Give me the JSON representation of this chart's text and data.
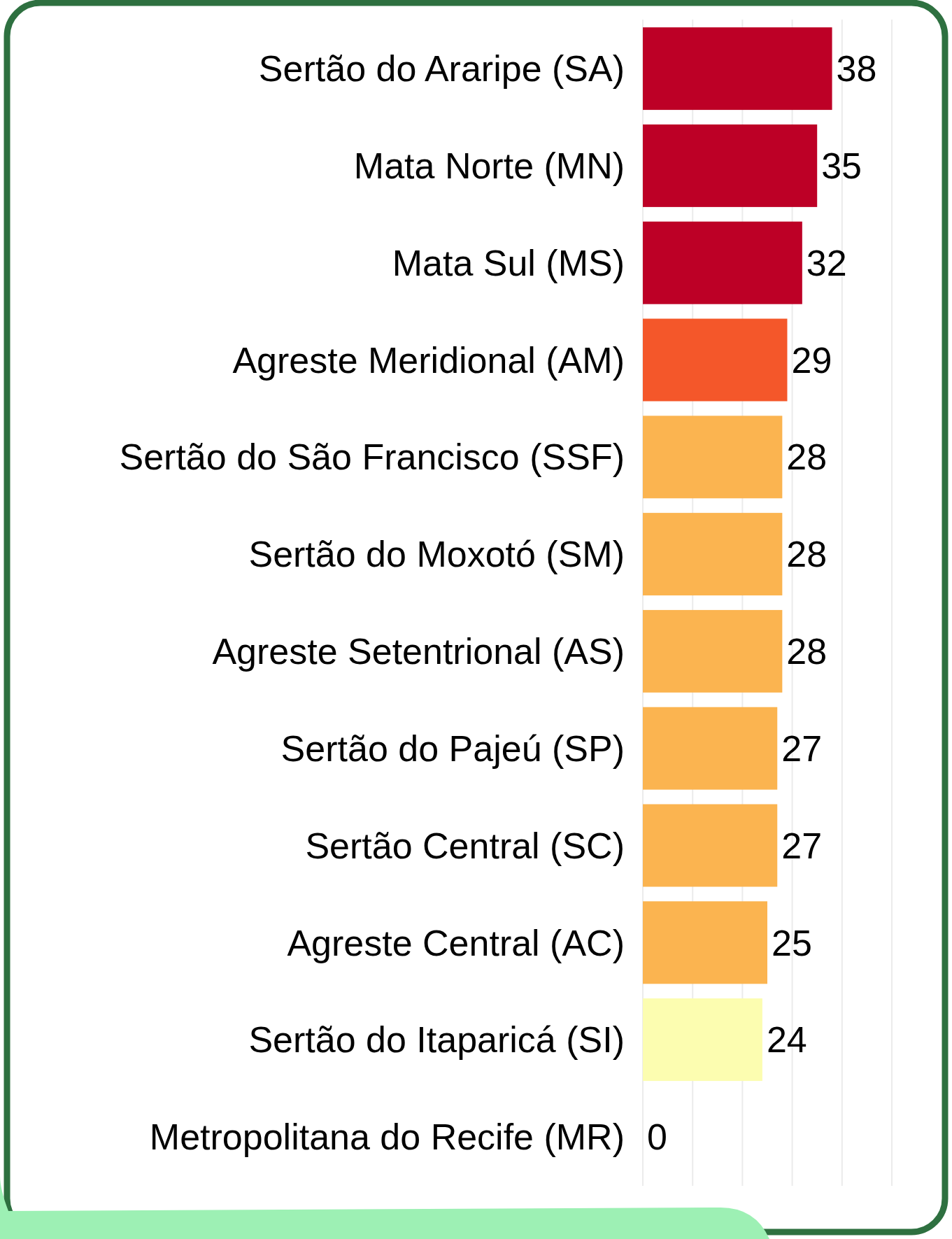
{
  "chart_data": {
    "type": "bar",
    "orientation": "horizontal",
    "categories": [
      "Sertão do Araripe (SA)",
      "Mata Norte (MN)",
      "Mata Sul (MS)",
      "Agreste Meridional (AM)",
      "Sertão do São Francisco (SSF)",
      "Sertão do Moxotó (SM)",
      "Agreste Setentrional (AS)",
      "Sertão do Pajeú (SP)",
      "Sertão Central (SC)",
      "Agreste Central (AC)",
      "Sertão do Itaparicá (SI)",
      "Metropolitana do Recife (MR)"
    ],
    "values": [
      38,
      35,
      32,
      29,
      28,
      28,
      28,
      27,
      27,
      25,
      24,
      0
    ],
    "colors": [
      "#bd0026",
      "#bd0026",
      "#bd0026",
      "#f4572a",
      "#fbb450",
      "#fbb450",
      "#fbb450",
      "#fbb450",
      "#fbb450",
      "#fbb450",
      "#fcfdb0",
      "#fcfdb0"
    ],
    "xlim": [
      0,
      50
    ],
    "xticks": [
      {
        "value": 0,
        "label": null
      },
      {
        "value": 10,
        "label": null
      },
      {
        "value": 20,
        "label": null
      },
      {
        "value": 30,
        "label": null
      },
      {
        "value": 40,
        "label": null
      },
      {
        "value": 50,
        "label": null
      }
    ],
    "grid": "x",
    "data_labels": true,
    "tick_labels": "y"
  }
}
